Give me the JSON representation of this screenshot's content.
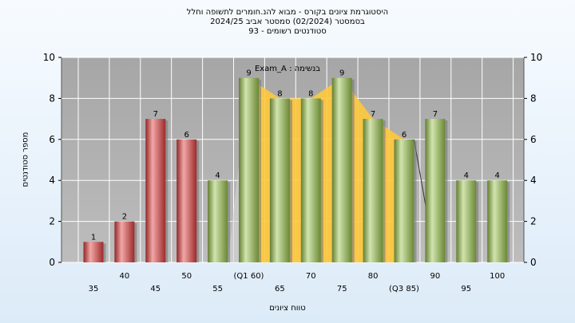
{
  "titles": {
    "line1": "היסטוגרמת ציונים בקורס - מבוא להנ.חומרים לתשופה וחלל",
    "line2": "בסמסטר  (02/2024)  סמסטר אביב 2024/25",
    "line3": "סטודנטים רשומים - 93"
  },
  "chart_data": {
    "type": "bar",
    "xlabel": "טווח ציונים",
    "ylabel": "מספר סטודנטים",
    "ylim": [
      0,
      10
    ],
    "yticks": [
      0,
      2,
      4,
      6,
      8,
      10
    ],
    "grid": true,
    "annotation": "Exam_A : בנשימה",
    "categories": [
      "35",
      "40",
      "45",
      "50",
      "55",
      "(Q1 60)",
      "65",
      "70",
      "75",
      "80",
      "(Q3 85)",
      "90",
      "95",
      "100"
    ],
    "values": [
      1,
      2,
      7,
      6,
      4,
      9,
      8,
      8,
      9,
      7,
      6,
      7,
      4,
      4
    ],
    "bar_colors": [
      "#e03c3c",
      "#e03c3c",
      "#e03c3c",
      "#e03c3c",
      "#98c24a",
      "#98c24a",
      "#98c24a",
      "#98c24a",
      "#98c24a",
      "#98c24a",
      "#98c24a",
      "#98c24a",
      "#98c24a",
      "#98c24a"
    ],
    "highlight_color": "#ffc93c"
  }
}
